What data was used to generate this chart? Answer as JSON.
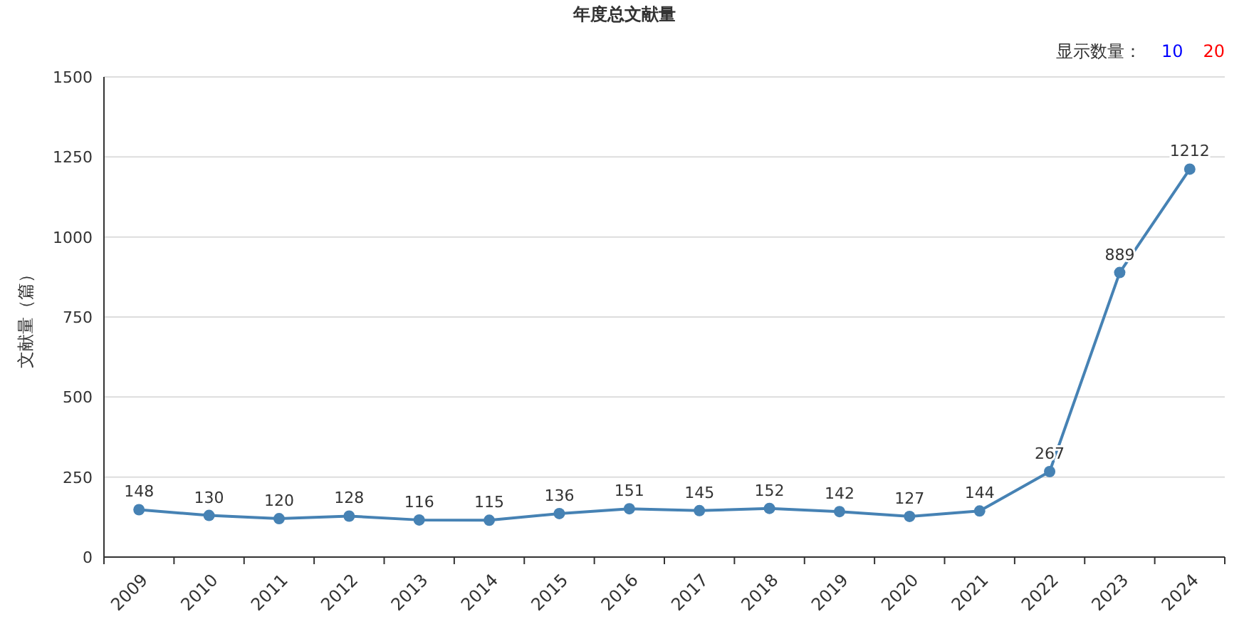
{
  "chart_data": {
    "type": "line",
    "title": "年度总文献量",
    "ylabel": "文献量（篇）",
    "categories": [
      "2009",
      "2010",
      "2011",
      "2012",
      "2013",
      "2014",
      "2015",
      "2016",
      "2017",
      "2018",
      "2019",
      "2020",
      "2021",
      "2022",
      "2023",
      "2024"
    ],
    "series": [
      {
        "color": "#4682b4",
        "values": [
          148,
          130,
          120,
          128,
          116,
          115,
          136,
          151,
          145,
          152,
          142,
          127,
          144,
          267,
          889,
          1212
        ]
      }
    ],
    "ylim": [
      0,
      1500
    ],
    "yticks": [
      0,
      250,
      500,
      750,
      1000,
      1250,
      1500
    ],
    "grid": "y",
    "marker": "circle",
    "line_style": "solid",
    "data_labels": true,
    "annotations": [
      "显示数量：",
      "10",
      "20"
    ]
  }
}
